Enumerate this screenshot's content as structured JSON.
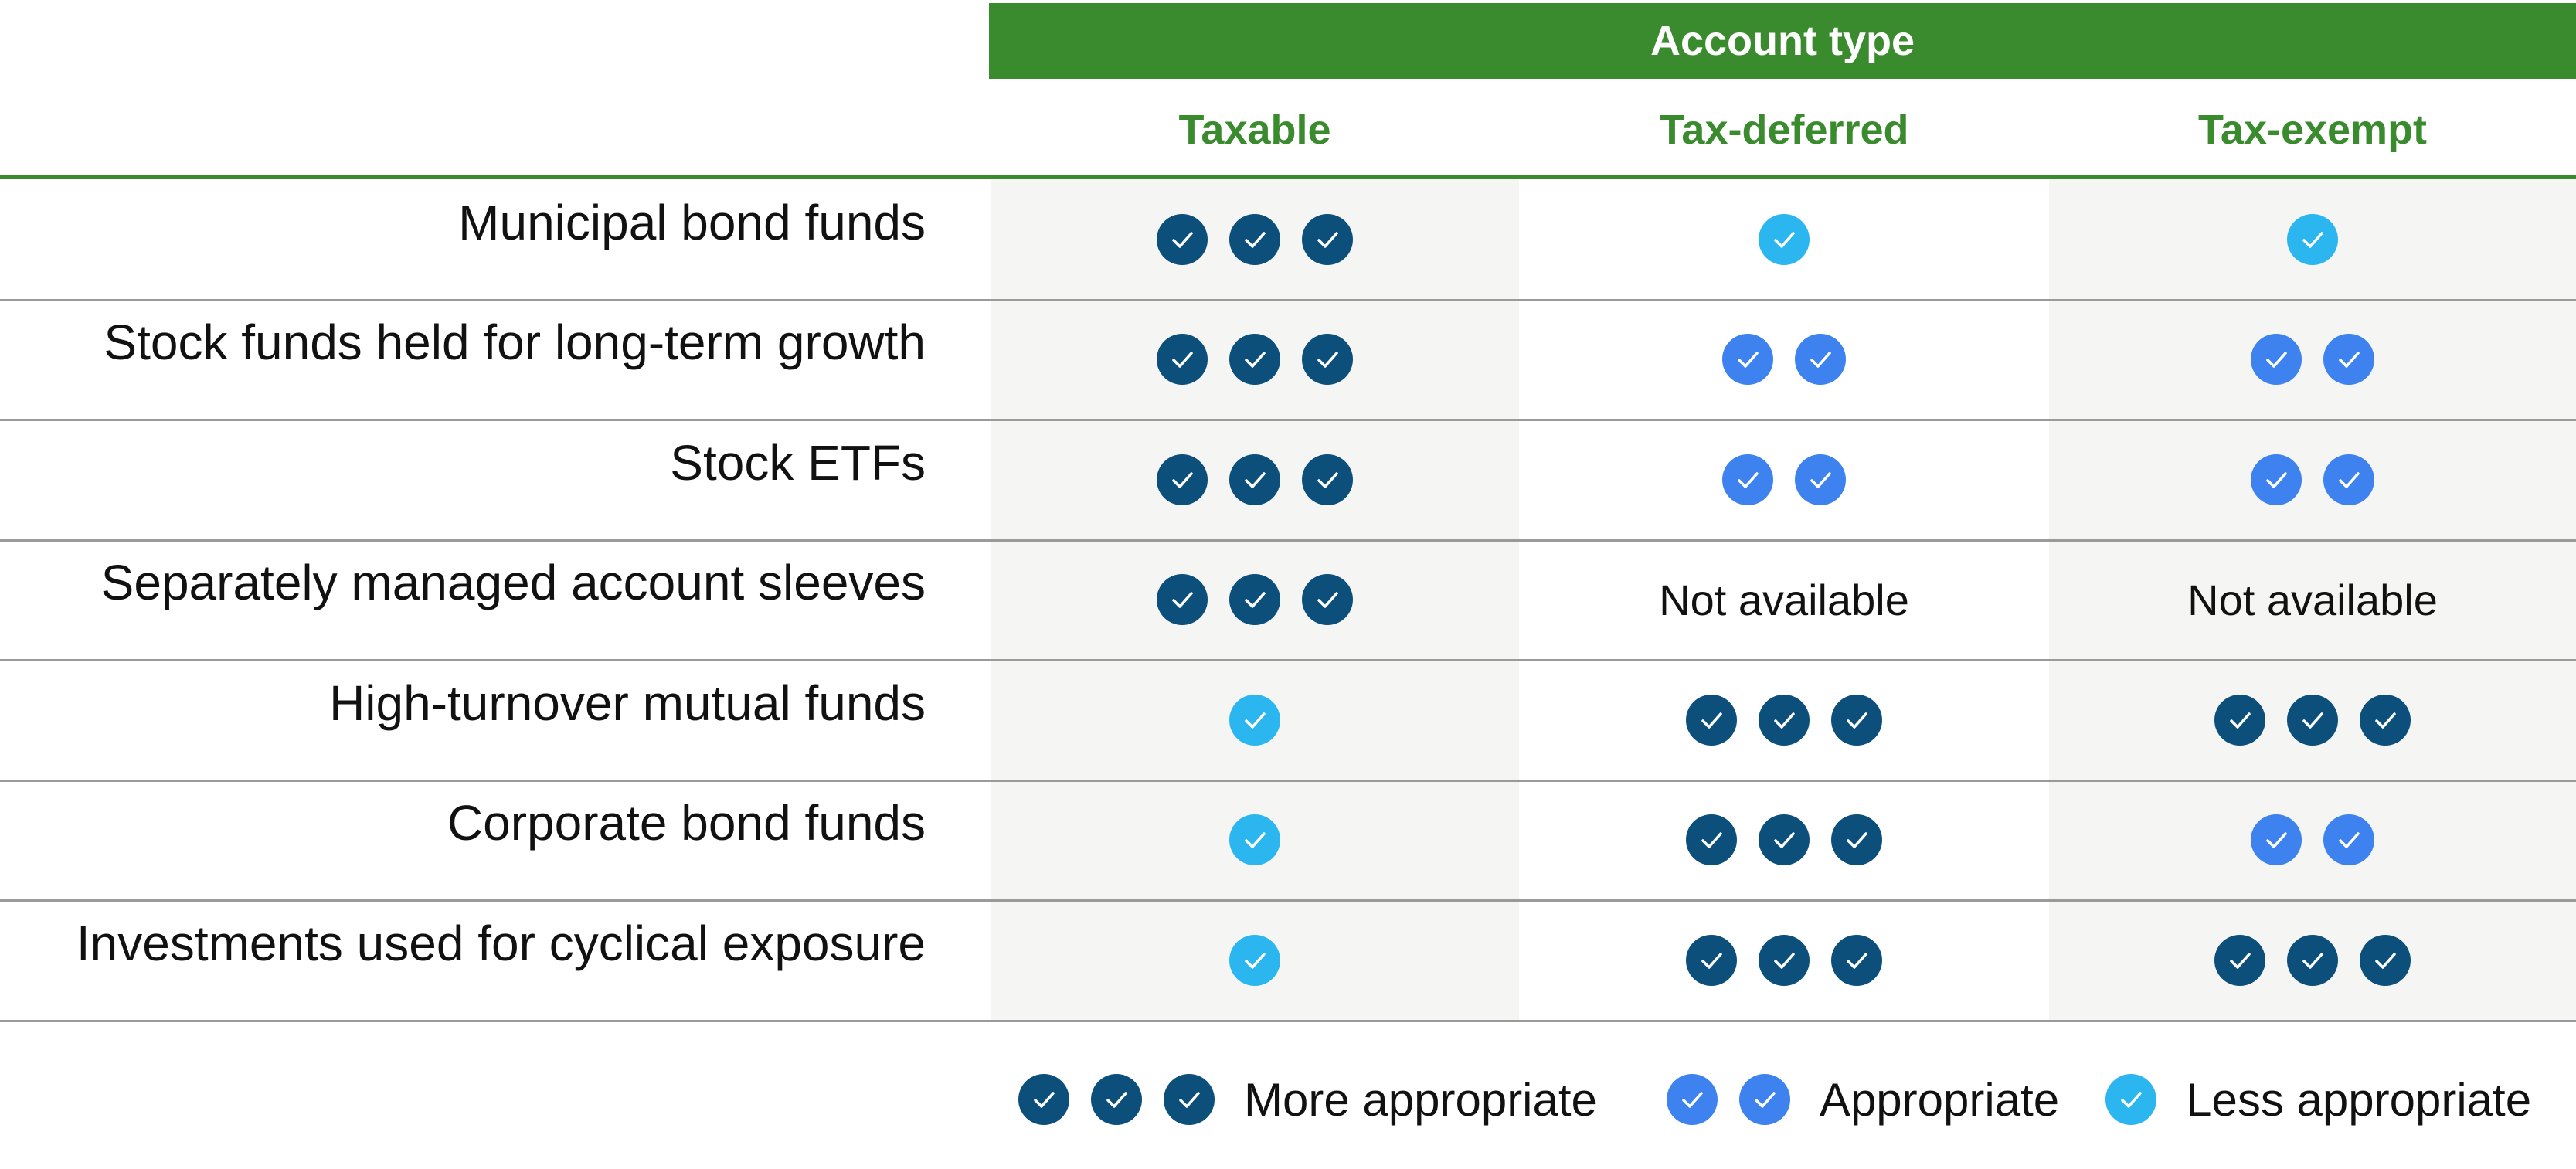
{
  "header": {
    "banner": "Account type",
    "columns": [
      "Taxable",
      "Tax-deferred",
      "Tax-exempt"
    ]
  },
  "levels": {
    "more": {
      "count": 3,
      "color": "#0c4f7a",
      "label": "More appropriate"
    },
    "appropriate": {
      "count": 2,
      "color": "#3d82ee",
      "label": "Appropriate"
    },
    "less": {
      "count": 1,
      "color": "#2cb6f0",
      "label": "Less appropriate"
    }
  },
  "rows": [
    {
      "label": "Municipal bond funds",
      "cells": [
        "more",
        "less",
        "less"
      ]
    },
    {
      "label": "Stock funds held for long-term growth",
      "cells": [
        "more",
        "appropriate",
        "appropriate"
      ]
    },
    {
      "label": "Stock ETFs",
      "cells": [
        "more",
        "appropriate",
        "appropriate"
      ]
    },
    {
      "label": "Separately managed account sleeves",
      "cells": [
        "more",
        "Not available",
        "Not available"
      ]
    },
    {
      "label": "High-turnover mutual funds",
      "cells": [
        "less",
        "more",
        "more"
      ]
    },
    {
      "label": "Corporate bond funds",
      "cells": [
        "less",
        "more",
        "appropriate"
      ]
    },
    {
      "label": "Investments used for cyclical exposure",
      "cells": [
        "less",
        "more",
        "more"
      ]
    }
  ],
  "legend": [
    "more",
    "appropriate",
    "less"
  ],
  "colors": {
    "header_green": "#3a8a2e",
    "shade": "#f5f5f3",
    "rule": "#9a9a9a"
  },
  "icons": {
    "check": "check-circle-icon"
  }
}
